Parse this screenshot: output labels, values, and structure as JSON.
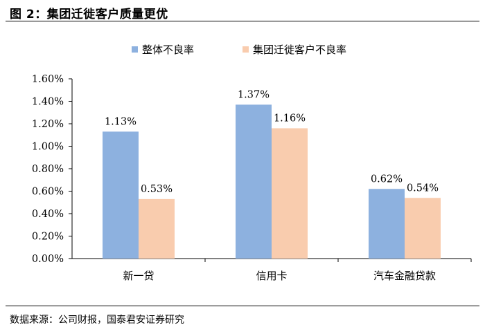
{
  "figure": {
    "title": "图 2：集团迁徙客户质量更优",
    "source": "数据来源：公司财报，国泰君安证券研究"
  },
  "chart_data": {
    "type": "bar",
    "categories": [
      "新一贷",
      "信用卡",
      "汽车金融贷款"
    ],
    "series": [
      {
        "name": "整体不良率",
        "values": [
          1.13,
          1.37,
          0.62
        ],
        "labels": [
          "1.13%",
          "1.37%",
          "0.62%"
        ],
        "color": "#8DB1DF"
      },
      {
        "name": "集团迁徙客户不良率",
        "values": [
          0.53,
          1.16,
          0.54
        ],
        "labels": [
          "0.53%",
          "1.16%",
          "0.54%"
        ],
        "color": "#F9CCAE"
      }
    ],
    "yticks": [
      "0.00%",
      "0.20%",
      "0.40%",
      "0.60%",
      "0.80%",
      "1.00%",
      "1.20%",
      "1.40%",
      "1.60%"
    ],
    "ylim": [
      0,
      1.6
    ],
    "legend_position": "top",
    "grid": false
  }
}
